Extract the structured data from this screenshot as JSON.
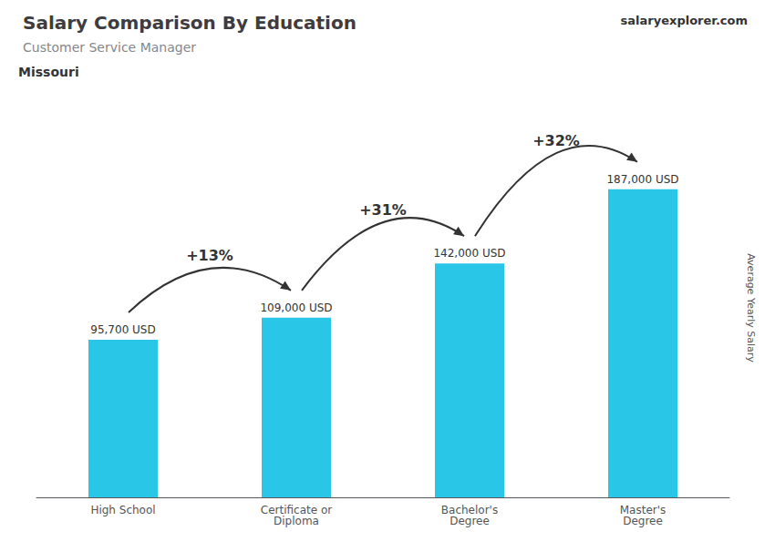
{
  "chart_data": {
    "type": "bar",
    "title": "Salary Comparison By Education",
    "subtitle": "Customer Service Manager",
    "location": "Missouri",
    "watermark": [
      "salary",
      "explorer",
      ".com"
    ],
    "ylabel": "Average Yearly Salary",
    "categories": [
      "High School",
      "Certificate or\nDiploma",
      "Bachelor's\nDegree",
      "Master's\nDegree"
    ],
    "values": [
      95700,
      109000,
      142000,
      187000
    ],
    "value_labels": [
      "95,700 USD",
      "109,000 USD",
      "142,000 USD",
      "187,000 USD"
    ],
    "data_labels": true,
    "annotations": [
      "+13%",
      "+31%",
      "+32%"
    ],
    "color": "#29C6E8",
    "ylim": [
      0,
      230000
    ],
    "grid": false,
    "tick_labels": "x"
  }
}
